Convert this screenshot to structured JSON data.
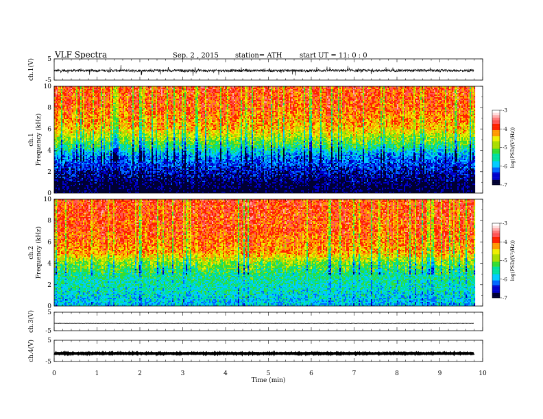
{
  "header": {
    "title": "VLF  Spectra",
    "date": "Sep. 2  , 2015",
    "station": "station= ATH",
    "start": "start  UT  =   11: 0  : 0"
  },
  "chart_data": [
    {
      "type": "line",
      "name_label": "ch.1",
      "ylabel": "ch.1(V)",
      "yticks": [
        "5",
        "-5"
      ],
      "ylim": [
        -5,
        5
      ],
      "xlim": [
        0,
        10
      ],
      "baseline": -0.5,
      "noise_amplitude": 1.2,
      "x_end": 9.8
    },
    {
      "type": "heatmap",
      "ylabel_top": "ch.1",
      "ylabel": "Frequency  (kHz)",
      "yticks": [
        "0",
        "2",
        "4",
        "6",
        "8",
        "10"
      ],
      "ylim": [
        0,
        10
      ],
      "xlim": [
        0,
        10
      ],
      "x_end": 9.8,
      "colorbar_label": "log(PSD/(V²/Hz))",
      "colorbar_ticks": [
        "-3",
        "-4",
        "-5",
        "-6",
        "-7"
      ],
      "colorbar_range": [
        -7,
        -3
      ],
      "band_profile_khz": [
        {
          "f": 0.5,
          "level": -6.9
        },
        {
          "f": 2.0,
          "level": -6.5
        },
        {
          "f": 3.5,
          "level": -6.0
        },
        {
          "f": 4.5,
          "level": -5.2
        },
        {
          "f": 6.0,
          "level": -4.3
        },
        {
          "f": 8.0,
          "level": -3.9
        },
        {
          "f": 10.0,
          "level": -3.8
        }
      ]
    },
    {
      "type": "heatmap",
      "ylabel_top": "ch.2",
      "ylabel": "Frequency  (kHz)",
      "yticks": [
        "0",
        "2",
        "4",
        "6",
        "8",
        "10"
      ],
      "ylim": [
        0,
        10
      ],
      "xlim": [
        0,
        10
      ],
      "x_end": 9.8,
      "colorbar_label": "log(PSD/(V²/Hz))",
      "colorbar_ticks": [
        "-3",
        "-4",
        "-5",
        "-6",
        "-7"
      ],
      "colorbar_range": [
        -7,
        -3
      ],
      "band_profile_khz": [
        {
          "f": 0.3,
          "level": -5.8
        },
        {
          "f": 1.5,
          "level": -5.6
        },
        {
          "f": 3.0,
          "level": -5.4
        },
        {
          "f": 4.0,
          "level": -5.0
        },
        {
          "f": 5.0,
          "level": -4.2
        },
        {
          "f": 7.0,
          "level": -3.9
        },
        {
          "f": 10.0,
          "level": -3.8
        }
      ]
    },
    {
      "type": "line",
      "name_label": "ch.3",
      "ylabel": "ch.3(V)",
      "yticks": [
        "5",
        "-5"
      ],
      "ylim": [
        -5,
        5
      ],
      "xlim": [
        0,
        10
      ],
      "baseline": -1.0,
      "noise_amplitude": 0.15,
      "x_end": 9.8
    },
    {
      "type": "line",
      "name_label": "ch.4",
      "ylabel": "ch.4(V)",
      "yticks": [
        "5",
        "-5"
      ],
      "ylim": [
        -5,
        5
      ],
      "xlim": [
        0,
        10
      ],
      "baseline": -1.2,
      "noise_amplitude": 0.25,
      "x_end": 9.8
    }
  ],
  "xaxis": {
    "label": "Time  (min)",
    "ticks": [
      "0",
      "1",
      "2",
      "3",
      "4",
      "5",
      "6",
      "7",
      "8",
      "9",
      "10"
    ],
    "range": [
      0,
      10
    ]
  },
  "colors": {
    "colormap": [
      "#000033",
      "#0000cc",
      "#0066ff",
      "#00ccff",
      "#00e0a0",
      "#33dd33",
      "#aadd00",
      "#eeee00",
      "#ff9900",
      "#ff2200",
      "#ff5555",
      "#ffaaaa",
      "#ffffff"
    ]
  }
}
